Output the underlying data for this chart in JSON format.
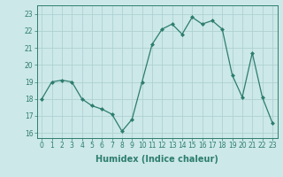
{
  "x": [
    0,
    1,
    2,
    3,
    4,
    5,
    6,
    7,
    8,
    9,
    10,
    11,
    12,
    13,
    14,
    15,
    16,
    17,
    18,
    19,
    20,
    21,
    22,
    23
  ],
  "y": [
    18.0,
    19.0,
    19.1,
    19.0,
    18.0,
    17.6,
    17.4,
    17.1,
    16.1,
    16.8,
    19.0,
    21.2,
    22.1,
    22.4,
    21.8,
    22.8,
    22.4,
    22.6,
    22.1,
    19.4,
    18.1,
    20.7,
    18.1,
    16.6
  ],
  "line_color": "#2d7d6e",
  "marker": "D",
  "marker_size": 2.0,
  "bg_color": "#cce8e8",
  "grid_color": "#aacece",
  "xlabel": "Humidex (Indice chaleur)",
  "xlim": [
    -0.5,
    23.5
  ],
  "ylim": [
    15.7,
    23.5
  ],
  "yticks": [
    16,
    17,
    18,
    19,
    20,
    21,
    22,
    23
  ],
  "xticks": [
    0,
    1,
    2,
    3,
    4,
    5,
    6,
    7,
    8,
    9,
    10,
    11,
    12,
    13,
    14,
    15,
    16,
    17,
    18,
    19,
    20,
    21,
    22,
    23
  ],
  "tick_label_fontsize": 5.5,
  "xlabel_fontsize": 7.0,
  "axis_color": "#2d7d6e",
  "spine_color": "#2d7d6e",
  "linewidth": 0.9
}
